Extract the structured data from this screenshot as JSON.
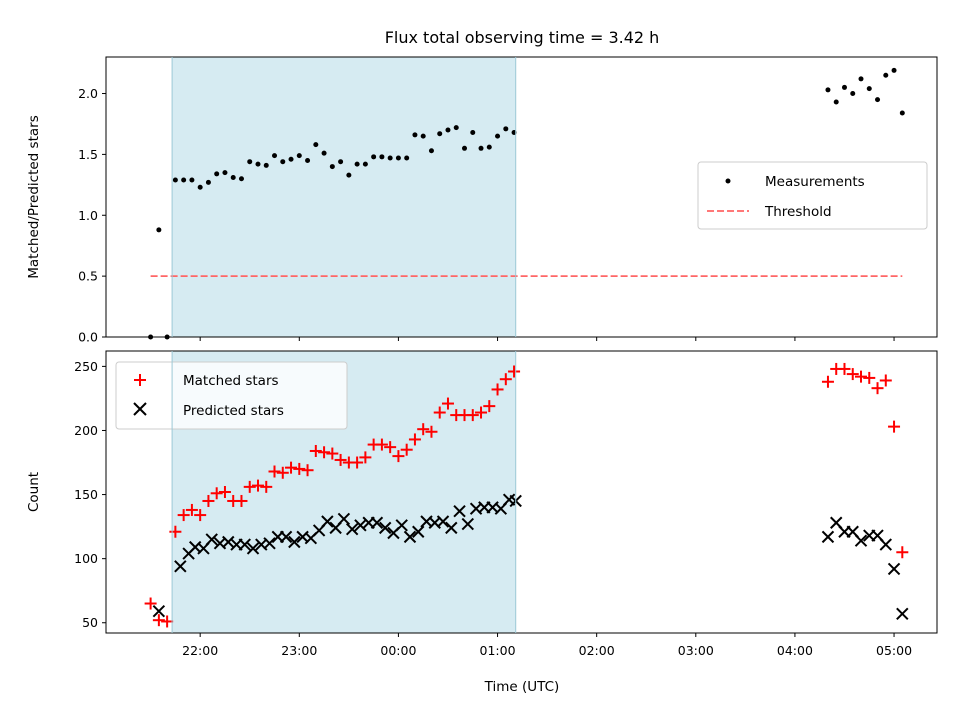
{
  "title": "Flux total observing time = 3.42 h",
  "xlabel": "Time (UTC)",
  "x_ticks": [
    "22:00",
    "23:00",
    "00:00",
    "01:00",
    "02:00",
    "03:00",
    "04:00",
    "05:00"
  ],
  "colors": {
    "shade": "#add8e6",
    "measurements": "#000000",
    "threshold": "#ff6666",
    "matched": "#ff0000",
    "predicted": "#000000"
  },
  "chart_data": [
    {
      "type": "scatter",
      "ylabel": "Matched/Predicted stars",
      "ylim": [
        0,
        2.3
      ],
      "y_ticks": [
        "0.0",
        "0.5",
        "1.0",
        "1.5",
        "2.0"
      ],
      "legend_position": "center-right",
      "legend": [
        "Measurements",
        "Threshold"
      ],
      "shaded_span": [
        "21:43",
        "01:11"
      ],
      "threshold": {
        "value": 0.5,
        "x_start": "21:30",
        "x_end": "05:05"
      },
      "series": [
        {
          "name": "Measurements",
          "x": [
            "21:30",
            "21:35",
            "21:40",
            "21:45",
            "21:50",
            "21:55",
            "22:00",
            "22:05",
            "22:10",
            "22:15",
            "22:20",
            "22:25",
            "22:30",
            "22:35",
            "22:40",
            "22:45",
            "22:50",
            "22:55",
            "23:00",
            "23:05",
            "23:10",
            "23:15",
            "23:20",
            "23:25",
            "23:30",
            "23:35",
            "23:40",
            "23:45",
            "23:50",
            "23:55",
            "00:00",
            "00:05",
            "00:10",
            "00:15",
            "00:20",
            "00:25",
            "00:30",
            "00:35",
            "00:40",
            "00:45",
            "00:50",
            "00:55",
            "01:00",
            "01:05",
            "01:10",
            "04:20",
            "04:25",
            "04:30",
            "04:35",
            "04:40",
            "04:45",
            "04:50",
            "04:55",
            "05:00",
            "05:05"
          ],
          "y": [
            0.0,
            0.88,
            0.0,
            1.29,
            1.29,
            1.29,
            1.23,
            1.27,
            1.34,
            1.35,
            1.31,
            1.3,
            1.44,
            1.42,
            1.41,
            1.49,
            1.44,
            1.46,
            1.49,
            1.45,
            1.58,
            1.51,
            1.4,
            1.44,
            1.33,
            1.42,
            1.42,
            1.48,
            1.48,
            1.47,
            1.47,
            1.47,
            1.66,
            1.65,
            1.53,
            1.67,
            1.7,
            1.72,
            1.55,
            1.68,
            1.55,
            1.56,
            1.65,
            1.71,
            1.68,
            2.03,
            1.93,
            2.05,
            2.0,
            2.12,
            2.04,
            1.95,
            2.15,
            2.19,
            1.84
          ]
        }
      ]
    },
    {
      "type": "scatter",
      "ylabel": "Count",
      "ylim": [
        42,
        262
      ],
      "y_ticks": [
        "50",
        "100",
        "150",
        "200",
        "250"
      ],
      "legend_position": "top-left",
      "legend": [
        "Matched stars",
        "Predicted stars"
      ],
      "shaded_span": [
        "21:43",
        "01:11"
      ],
      "series": [
        {
          "name": "Matched stars",
          "x": [
            "21:30",
            "21:35",
            "21:40",
            "21:45",
            "21:50",
            "21:55",
            "22:00",
            "22:05",
            "22:10",
            "22:15",
            "22:20",
            "22:25",
            "22:30",
            "22:35",
            "22:40",
            "22:45",
            "22:50",
            "22:55",
            "23:00",
            "23:05",
            "23:10",
            "23:15",
            "23:20",
            "23:25",
            "23:30",
            "23:35",
            "23:40",
            "23:45",
            "23:50",
            "23:55",
            "00:00",
            "00:05",
            "00:10",
            "00:15",
            "00:20",
            "00:25",
            "00:30",
            "00:35",
            "00:40",
            "00:45",
            "00:50",
            "00:55",
            "01:00",
            "01:05",
            "01:10",
            "04:20",
            "04:25",
            "04:30",
            "04:35",
            "04:40",
            "04:45",
            "04:50",
            "04:55",
            "05:00",
            "05:05"
          ],
          "y": [
            65,
            52,
            51,
            121,
            134,
            138,
            134,
            145,
            151,
            152,
            145,
            145,
            156,
            157,
            156,
            168,
            167,
            171,
            170,
            169,
            184,
            183,
            182,
            177,
            175,
            175,
            179,
            189,
            189,
            187,
            180,
            185,
            193,
            201,
            199,
            214,
            221,
            212,
            212,
            212,
            214,
            219,
            232,
            240,
            246,
            238,
            248,
            248,
            244,
            242,
            241,
            233,
            239,
            203,
            105
          ]
        },
        {
          "name": "Predicted stars",
          "x": [
            "21:35",
            "21:48",
            "21:53",
            "21:57",
            "22:02",
            "22:07",
            "22:12",
            "22:17",
            "22:22",
            "22:27",
            "22:32",
            "22:37",
            "22:42",
            "22:47",
            "22:52",
            "22:57",
            "23:02",
            "23:07",
            "23:12",
            "23:17",
            "23:22",
            "23:27",
            "23:32",
            "23:37",
            "23:42",
            "23:47",
            "23:52",
            "23:57",
            "00:02",
            "00:07",
            "00:12",
            "00:17",
            "00:22",
            "00:27",
            "00:32",
            "00:37",
            "00:42",
            "00:47",
            "00:52",
            "00:57",
            "01:02",
            "01:07",
            "01:11",
            "04:20",
            "04:25",
            "04:30",
            "04:35",
            "04:40",
            "04:45",
            "04:50",
            "04:55",
            "05:00",
            "05:05"
          ],
          "y": [
            59,
            94,
            104,
            109,
            108,
            115,
            112,
            113,
            111,
            111,
            108,
            111,
            112,
            117,
            117,
            113,
            117,
            116,
            122,
            129,
            124,
            131,
            123,
            126,
            128,
            128,
            124,
            120,
            126,
            117,
            121,
            129,
            128,
            129,
            124,
            137,
            127,
            139,
            140,
            140,
            139,
            146,
            145,
            117,
            128,
            121,
            121,
            114,
            118,
            118,
            111,
            92,
            57
          ]
        }
      ]
    }
  ]
}
